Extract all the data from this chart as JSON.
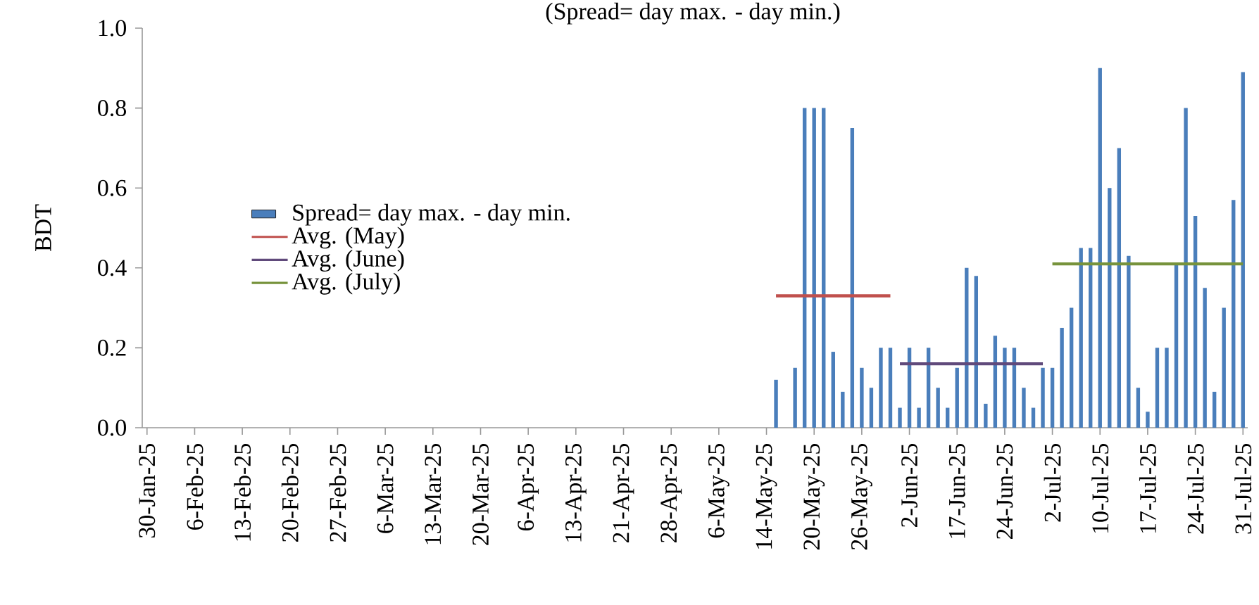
{
  "chart_data": {
    "type": "bar",
    "title": "(Spread= day max. - day min.)",
    "ylabel": "BDT",
    "categories": [
      "30-Jan-25",
      null,
      null,
      null,
      null,
      "6-Feb-25",
      null,
      null,
      null,
      null,
      "13-Feb-25",
      null,
      null,
      null,
      null,
      "20-Feb-25",
      null,
      null,
      null,
      null,
      "27-Feb-25",
      null,
      null,
      null,
      null,
      "6-Mar-25",
      null,
      null,
      null,
      null,
      "13-Mar-25",
      null,
      null,
      null,
      null,
      "20-Mar-25",
      null,
      null,
      null,
      null,
      "6-Apr-25",
      null,
      null,
      null,
      null,
      "13-Apr-25",
      null,
      null,
      null,
      null,
      "21-Apr-25",
      null,
      null,
      null,
      null,
      "28-Apr-25",
      null,
      null,
      null,
      null,
      "6-May-25",
      null,
      null,
      null,
      null,
      "14-May-25",
      null,
      null,
      null,
      null,
      "20-May-25",
      null,
      null,
      null,
      null,
      "26-May-25",
      null,
      null,
      null,
      null,
      "2-Jun-25",
      null,
      null,
      null,
      null,
      "17-Jun-25",
      null,
      null,
      null,
      null,
      "24-Jun-25",
      null,
      null,
      null,
      null,
      "2-Jul-25",
      null,
      null,
      null,
      null,
      "10-Jul-25",
      null,
      null,
      null,
      null,
      "17-Jul-25",
      null,
      null,
      null,
      null,
      "24-Jul-25",
      null,
      null,
      null,
      null,
      "31-Jul-25"
    ],
    "series": [
      {
        "name": "Spread= day max. - day min.",
        "color": "#4a7ebb",
        "values": [
          null,
          null,
          null,
          null,
          null,
          null,
          null,
          null,
          null,
          null,
          null,
          null,
          null,
          null,
          null,
          null,
          null,
          null,
          null,
          null,
          null,
          null,
          null,
          null,
          null,
          null,
          null,
          null,
          null,
          null,
          null,
          null,
          null,
          null,
          null,
          null,
          null,
          null,
          null,
          null,
          null,
          null,
          null,
          null,
          null,
          null,
          null,
          null,
          null,
          null,
          null,
          null,
          null,
          null,
          null,
          null,
          null,
          null,
          null,
          null,
          null,
          null,
          null,
          null,
          null,
          null,
          0.12,
          null,
          0.15,
          0.8,
          0.8,
          0.8,
          0.19,
          0.09,
          0.75,
          0.15,
          0.1,
          0.2,
          0.2,
          0.05,
          0.2,
          0.05,
          0.2,
          0.1,
          0.05,
          0.15,
          0.4,
          0.38,
          0.06,
          0.23,
          0.2,
          0.2,
          0.1,
          0.05,
          0.15,
          0.15,
          0.25,
          0.3,
          0.45,
          0.45,
          0.9,
          0.6,
          0.7,
          0.43,
          0.1,
          0.04,
          0.2,
          0.2,
          0.41,
          0.8,
          0.53,
          0.35,
          0.09,
          0.3,
          0.57,
          0.89
        ]
      },
      {
        "name": "Avg. (May)",
        "type": "line",
        "color": "#c0504d",
        "values": [
          null,
          null,
          null,
          null,
          null,
          null,
          null,
          null,
          null,
          null,
          null,
          null,
          null,
          null,
          null,
          null,
          null,
          null,
          null,
          null,
          null,
          null,
          null,
          null,
          null,
          null,
          null,
          null,
          null,
          null,
          null,
          null,
          null,
          null,
          null,
          null,
          null,
          null,
          null,
          null,
          null,
          null,
          null,
          null,
          null,
          null,
          null,
          null,
          null,
          null,
          null,
          null,
          null,
          null,
          null,
          null,
          null,
          null,
          null,
          null,
          null,
          null,
          null,
          null,
          null,
          null,
          0.33,
          0.33,
          0.33,
          0.33,
          0.33,
          0.33,
          0.33,
          0.33,
          0.33,
          0.33,
          0.33,
          0.33,
          0.33,
          null,
          null,
          null,
          null,
          null,
          null,
          null,
          null,
          null,
          null,
          null,
          null,
          null,
          null,
          null,
          null,
          null,
          null,
          null,
          null,
          null,
          null,
          null,
          null,
          null,
          null,
          null,
          null,
          null,
          null,
          null,
          null,
          null,
          null,
          null,
          null,
          null
        ]
      },
      {
        "name": "Avg. (June)",
        "type": "line",
        "color": "#604a7b",
        "values": [
          null,
          null,
          null,
          null,
          null,
          null,
          null,
          null,
          null,
          null,
          null,
          null,
          null,
          null,
          null,
          null,
          null,
          null,
          null,
          null,
          null,
          null,
          null,
          null,
          null,
          null,
          null,
          null,
          null,
          null,
          null,
          null,
          null,
          null,
          null,
          null,
          null,
          null,
          null,
          null,
          null,
          null,
          null,
          null,
          null,
          null,
          null,
          null,
          null,
          null,
          null,
          null,
          null,
          null,
          null,
          null,
          null,
          null,
          null,
          null,
          null,
          null,
          null,
          null,
          null,
          null,
          null,
          null,
          null,
          null,
          null,
          null,
          null,
          null,
          null,
          null,
          null,
          null,
          null,
          0.16,
          0.16,
          0.16,
          0.16,
          0.16,
          0.16,
          0.16,
          0.16,
          0.16,
          0.16,
          0.16,
          0.16,
          0.16,
          0.16,
          0.16,
          0.16,
          null,
          null,
          null,
          null,
          null,
          null,
          null,
          null,
          null,
          null,
          null,
          null,
          null,
          null,
          null,
          null,
          null,
          null,
          null,
          null,
          null
        ]
      },
      {
        "name": "Avg. (July)",
        "type": "line",
        "color": "#77933c",
        "values": [
          null,
          null,
          null,
          null,
          null,
          null,
          null,
          null,
          null,
          null,
          null,
          null,
          null,
          null,
          null,
          null,
          null,
          null,
          null,
          null,
          null,
          null,
          null,
          null,
          null,
          null,
          null,
          null,
          null,
          null,
          null,
          null,
          null,
          null,
          null,
          null,
          null,
          null,
          null,
          null,
          null,
          null,
          null,
          null,
          null,
          null,
          null,
          null,
          null,
          null,
          null,
          null,
          null,
          null,
          null,
          null,
          null,
          null,
          null,
          null,
          null,
          null,
          null,
          null,
          null,
          null,
          null,
          null,
          null,
          null,
          null,
          null,
          null,
          null,
          null,
          null,
          null,
          null,
          null,
          null,
          null,
          null,
          null,
          null,
          null,
          null,
          null,
          null,
          null,
          null,
          null,
          null,
          null,
          null,
          null,
          0.41,
          0.41,
          0.41,
          0.41,
          0.41,
          0.41,
          0.41,
          0.41,
          0.41,
          0.41,
          0.41,
          0.41,
          0.41,
          0.41,
          0.41,
          0.41,
          0.41,
          0.41,
          0.41,
          0.41,
          0.41
        ]
      }
    ],
    "ylim": [
      0,
      1
    ],
    "yticks": [
      {
        "value": 0,
        "label": "0.0"
      },
      {
        "value": 0.2,
        "label": "0.2"
      },
      {
        "value": 0.4,
        "label": "0.4"
      },
      {
        "value": 0.6,
        "label": "0.6"
      },
      {
        "value": 0.8,
        "label": "0.8"
      },
      {
        "value": 1,
        "label": "1.0"
      }
    ],
    "legend": "left"
  }
}
